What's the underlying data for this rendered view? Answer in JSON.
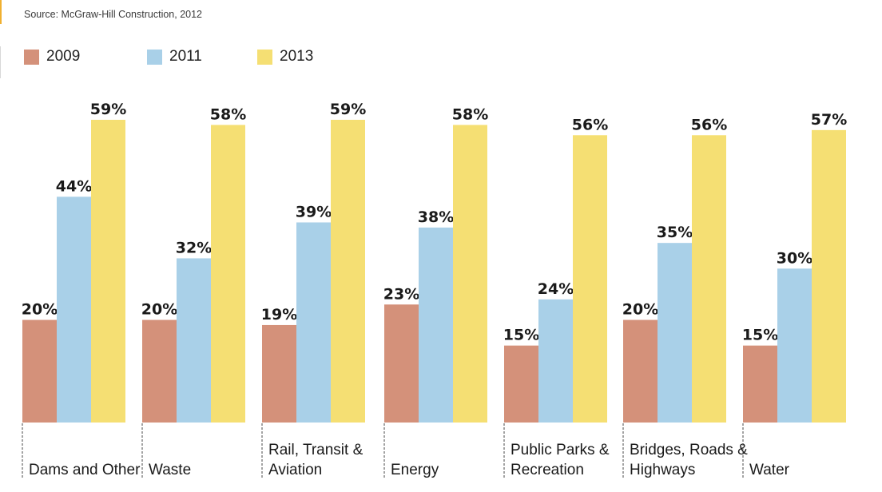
{
  "source": "Source: McGraw-Hill Construction, 2012",
  "colors": {
    "2009": "#d4917a",
    "2011": "#a9d0e8",
    "2013": "#f5df73"
  },
  "chart_data": {
    "type": "bar",
    "title": "",
    "xlabel": "",
    "ylabel": "",
    "ylim": [
      0,
      65
    ],
    "categories": [
      [
        "Dams and Other"
      ],
      [
        "Waste"
      ],
      [
        "Rail, Transit &",
        "Aviation"
      ],
      [
        "Energy"
      ],
      [
        "Public Parks &",
        "Recreation"
      ],
      [
        "Bridges, Roads &",
        "Highways"
      ],
      [
        "Water"
      ]
    ],
    "series": [
      {
        "name": "2009",
        "values": [
          20,
          20,
          19,
          23,
          15,
          20,
          15
        ],
        "labels": [
          "20%",
          "20%",
          "19%",
          "23%",
          "15%",
          "20%",
          "15%"
        ]
      },
      {
        "name": "2011",
        "values": [
          44,
          32,
          39,
          38,
          24,
          35,
          30
        ],
        "labels": [
          "44%",
          "32%",
          "39%",
          "38%",
          "24%",
          "35%",
          "30%"
        ]
      },
      {
        "name": "2013",
        "values": [
          59,
          58,
          59,
          58,
          56,
          56,
          57
        ],
        "labels": [
          "59%",
          "58%",
          "59%",
          "58%",
          "56%",
          "56%",
          "57%"
        ]
      }
    ],
    "legend": "top-left"
  }
}
